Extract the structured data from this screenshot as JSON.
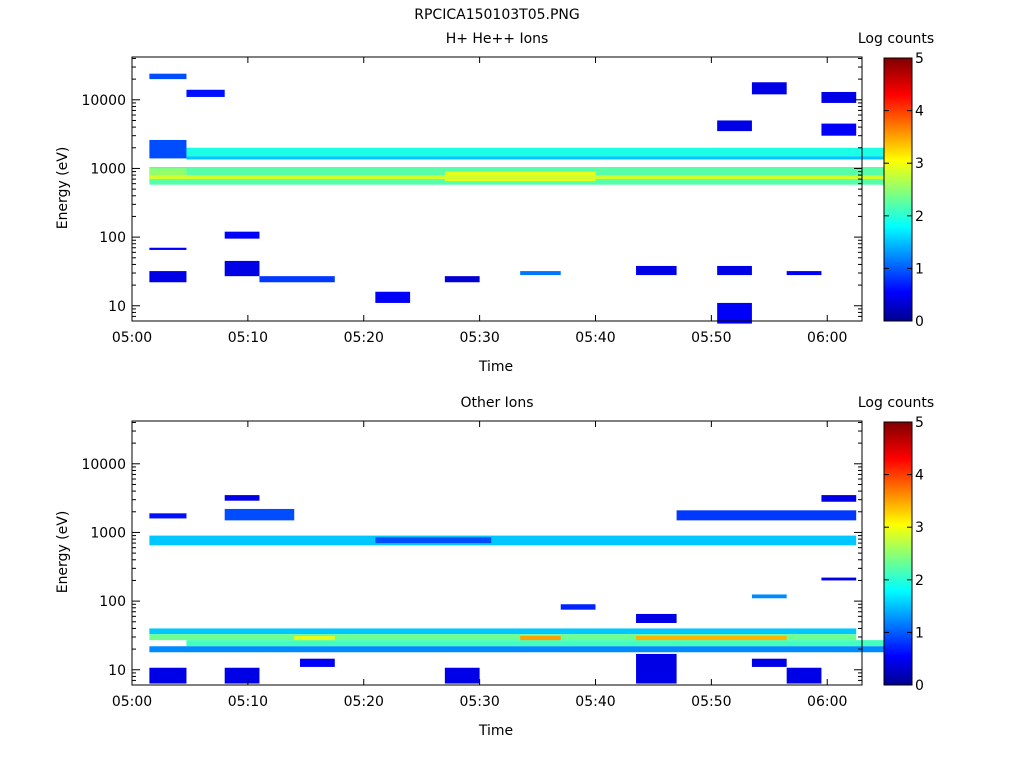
{
  "figure_title": "RPCICA150103T05.PNG",
  "colorbar": {
    "label": "Log counts",
    "ticks": [
      "0",
      "1",
      "2",
      "3",
      "4",
      "5"
    ],
    "range": [
      0,
      5
    ],
    "colormap": "jet"
  },
  "chart_data": [
    {
      "type": "heatmap",
      "title": "H+ He++ Ions",
      "xlabel": "Time",
      "ylabel": "Energy (eV)",
      "ylog": true,
      "xlim": [
        "05:00",
        "06:03"
      ],
      "ylim": [
        6,
        42000
      ],
      "x_ticks": [
        "05:00",
        "05:10",
        "05:20",
        "05:30",
        "05:40",
        "05:50",
        "06:00"
      ],
      "y_ticks": [
        "10",
        "100",
        "1000",
        "10000"
      ],
      "cells": [
        {
          "x": [
            1.5,
            4.7
          ],
          "y": [
            1400,
            2600
          ],
          "v": 1.0
        },
        {
          "x": [
            4.7,
            65
          ],
          "y": [
            1500,
            2000
          ],
          "v": 2.0
        },
        {
          "x": [
            4.7,
            65
          ],
          "y": [
            1350,
            1500
          ],
          "v": 1.6
        },
        {
          "x": [
            1.5,
            65
          ],
          "y": [
            580,
            1050
          ],
          "v": 2.3
        },
        {
          "x": [
            27,
            40
          ],
          "y": [
            650,
            900
          ],
          "v": 3.0
        },
        {
          "x": [
            1.5,
            65
          ],
          "y": [
            700,
            800
          ],
          "v": 2.9
        },
        {
          "x": [
            1.5,
            4.7
          ],
          "y": [
            22,
            32
          ],
          "v": 0.5
        },
        {
          "x": [
            8,
            11
          ],
          "y": [
            27,
            45
          ],
          "v": 0.5
        },
        {
          "x": [
            11,
            17.5
          ],
          "y": [
            22,
            27
          ],
          "v": 0.9
        },
        {
          "x": [
            21,
            24
          ],
          "y": [
            11,
            16
          ],
          "v": 0.6
        },
        {
          "x": [
            27,
            30
          ],
          "y": [
            22,
            27
          ],
          "v": 0.4
        },
        {
          "x": [
            33.5,
            37
          ],
          "y": [
            28,
            32
          ],
          "v": 1.2
        },
        {
          "x": [
            43.5,
            47
          ],
          "y": [
            28,
            38
          ],
          "v": 0.5
        },
        {
          "x": [
            50.5,
            53.5
          ],
          "y": [
            28,
            38
          ],
          "v": 0.5
        },
        {
          "x": [
            50.5,
            53.5
          ],
          "y": [
            5.5,
            11
          ],
          "v": 0.6
        },
        {
          "x": [
            1.5,
            4.7
          ],
          "y": [
            20000,
            24000
          ],
          "v": 1.0
        },
        {
          "x": [
            4.7,
            8
          ],
          "y": [
            11000,
            14000
          ],
          "v": 0.7
        },
        {
          "x": [
            53.5,
            56.5
          ],
          "y": [
            12000,
            18000
          ],
          "v": 0.5
        },
        {
          "x": [
            59.5,
            62.5
          ],
          "y": [
            9000,
            13000
          ],
          "v": 0.5
        },
        {
          "x": [
            59.5,
            62.5
          ],
          "y": [
            3000,
            4500
          ],
          "v": 0.6
        },
        {
          "x": [
            50.5,
            53.5
          ],
          "y": [
            3500,
            5000
          ],
          "v": 0.5
        },
        {
          "x": [
            1.5,
            4.7
          ],
          "y": [
            800,
            1000
          ],
          "v": 2.6
        },
        {
          "x": [
            8,
            11
          ],
          "y": [
            95,
            120
          ],
          "v": 0.6
        },
        {
          "x": [
            1.5,
            4.7
          ],
          "y": [
            65,
            70
          ],
          "v": 0.6
        },
        {
          "x": [
            56.5,
            59.5
          ],
          "y": [
            28,
            32
          ],
          "v": 0.6
        }
      ]
    },
    {
      "type": "heatmap",
      "title": "Other Ions",
      "xlabel": "Time",
      "ylabel": "Energy (eV)",
      "ylog": true,
      "xlim": [
        "05:00",
        "06:03"
      ],
      "ylim": [
        6,
        42000
      ],
      "x_ticks": [
        "05:00",
        "05:10",
        "05:20",
        "05:30",
        "05:40",
        "05:50",
        "06:00"
      ],
      "y_ticks": [
        "10",
        "100",
        "1000",
        "10000"
      ],
      "cells": [
        {
          "x": [
            1.5,
            62.5
          ],
          "y": [
            650,
            900
          ],
          "v": 1.6
        },
        {
          "x": [
            21,
            31
          ],
          "y": [
            700,
            850
          ],
          "v": 1.0
        },
        {
          "x": [
            1.5,
            4.7
          ],
          "y": [
            1600,
            1900
          ],
          "v": 0.7
        },
        {
          "x": [
            8,
            14
          ],
          "y": [
            1500,
            2200
          ],
          "v": 1.0
        },
        {
          "x": [
            47,
            62.5
          ],
          "y": [
            1500,
            2100
          ],
          "v": 0.9
        },
        {
          "x": [
            8,
            11
          ],
          "y": [
            2900,
            3500
          ],
          "v": 0.5
        },
        {
          "x": [
            59.5,
            62.5
          ],
          "y": [
            2800,
            3500
          ],
          "v": 0.5
        },
        {
          "x": [
            1.5,
            62.5
          ],
          "y": [
            33,
            40
          ],
          "v": 1.6
        },
        {
          "x": [
            1.5,
            62.5
          ],
          "y": [
            27,
            33
          ],
          "v": 2.4
        },
        {
          "x": [
            4.7,
            65
          ],
          "y": [
            22,
            27
          ],
          "v": 2.2
        },
        {
          "x": [
            1.5,
            65
          ],
          "y": [
            18,
            22
          ],
          "v": 1.3
        },
        {
          "x": [
            33.5,
            37
          ],
          "y": [
            27,
            31
          ],
          "v": 3.6
        },
        {
          "x": [
            43.5,
            56.5
          ],
          "y": [
            27,
            31
          ],
          "v": 3.5
        },
        {
          "x": [
            14,
            17.5
          ],
          "y": [
            27,
            31
          ],
          "v": 3.0
        },
        {
          "x": [
            1.5,
            4.7
          ],
          "y": [
            6.3,
            10.7
          ],
          "v": 0.5
        },
        {
          "x": [
            8,
            11
          ],
          "y": [
            6.3,
            10.7
          ],
          "v": 0.5
        },
        {
          "x": [
            14.5,
            17.5
          ],
          "y": [
            11,
            14.5
          ],
          "v": 0.6
        },
        {
          "x": [
            27,
            30
          ],
          "y": [
            6.3,
            10.7
          ],
          "v": 0.5
        },
        {
          "x": [
            43.5,
            47
          ],
          "y": [
            6.3,
            17
          ],
          "v": 0.5
        },
        {
          "x": [
            53.5,
            56.5
          ],
          "y": [
            11,
            14.5
          ],
          "v": 0.5
        },
        {
          "x": [
            56.5,
            59.5
          ],
          "y": [
            6.3,
            10.7
          ],
          "v": 0.5
        },
        {
          "x": [
            43.5,
            47
          ],
          "y": [
            48,
            65
          ],
          "v": 0.5
        },
        {
          "x": [
            53.5,
            56.5
          ],
          "y": [
            110,
            125
          ],
          "v": 1.3
        },
        {
          "x": [
            37,
            40
          ],
          "y": [
            75,
            90
          ],
          "v": 0.8
        },
        {
          "x": [
            59.5,
            62.5
          ],
          "y": [
            200,
            220
          ],
          "v": 0.5
        }
      ]
    }
  ]
}
